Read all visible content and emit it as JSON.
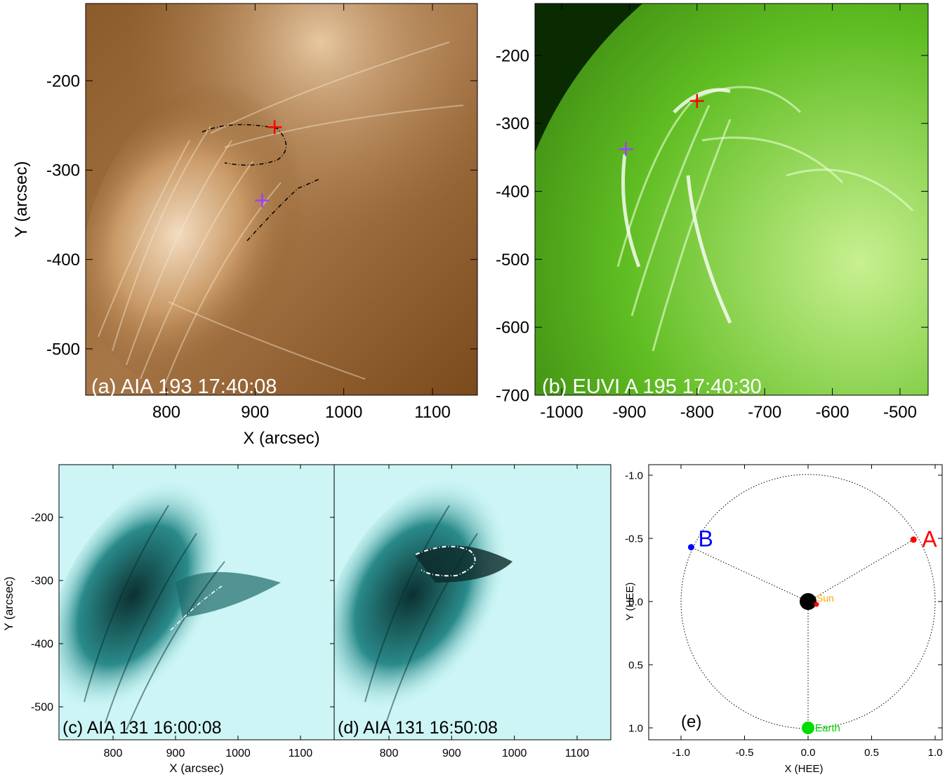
{
  "figure": {
    "panels": [
      {
        "id": "a",
        "label": "(a) AIA 193 17:40:08",
        "xlabel": "X (arcsec)",
        "ylabel": "Y (arcsec)",
        "xticks": [
          "800",
          "900",
          "1000",
          "1100"
        ],
        "yticks": [
          "-200",
          "-300",
          "-400",
          "-500"
        ],
        "image_tint": "#7a4e1e",
        "markers": [
          {
            "color": "#ff0000",
            "x": 922,
            "y": -252
          },
          {
            "color": "#a040ff",
            "x": 908,
            "y": -334
          }
        ]
      },
      {
        "id": "b",
        "label": "(b) EUVI A 195 17:40:30",
        "xticks": [
          "-1000",
          "-900",
          "-800",
          "-700",
          "-600",
          "-500"
        ],
        "yticks": [
          "-200",
          "-300",
          "-400",
          "-500",
          "-600",
          "-700"
        ],
        "image_tint": "#3c8a10",
        "markers": [
          {
            "color": "#ff0000",
            "x": -800,
            "y": -267
          },
          {
            "color": "#a040ff",
            "x": -905,
            "y": -338
          }
        ]
      },
      {
        "id": "c",
        "label": "(c) AIA 131 16:00:08",
        "xlabel": "X (arcsec)",
        "ylabel": "Y (arcsec)",
        "xticks": [
          "800",
          "900",
          "1000",
          "1100"
        ],
        "yticks": [
          "-200",
          "-300",
          "-400",
          "-500"
        ],
        "image_tint": "#35c8c8"
      },
      {
        "id": "d",
        "label": "(d) AIA 131 16:50:08",
        "xticks": [
          "800",
          "900",
          "1000",
          "1100"
        ],
        "image_tint": "#35c8c8"
      },
      {
        "id": "e",
        "label": "(e)",
        "xlabel": "X (HEE)",
        "ylabel": "Y (HEE)",
        "xticks": [
          "-1.0",
          "-0.5",
          "0.0",
          "0.5",
          "1.0"
        ],
        "yticks": [
          "-1.0",
          "-0.5",
          "0.0",
          "0.5",
          "1.0"
        ],
        "bodies": [
          {
            "name": "A",
            "x": 0.83,
            "y": -0.49,
            "color": "#ff0000"
          },
          {
            "name": "B",
            "x": -0.92,
            "y": -0.43,
            "color": "#0000ff"
          },
          {
            "name": "Sun",
            "x": 0.0,
            "y": 0.0,
            "color": "#000000",
            "label_color": "#ffa500"
          },
          {
            "name": "Earth",
            "x": 0.0,
            "y": 1.0,
            "color": "#00dd00",
            "label_color": "#00cc00"
          }
        ]
      }
    ]
  }
}
